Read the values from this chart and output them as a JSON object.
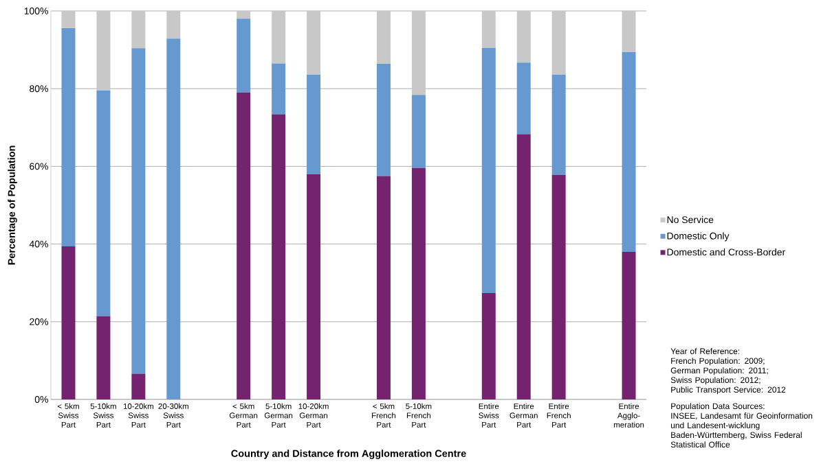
{
  "chart_data": {
    "type": "bar",
    "stacked": true,
    "xlabel": "Country and Distance from Agglomeration Centre",
    "ylabel": "Percentage of Population",
    "categories": [
      "< 5km Swiss Part",
      "5-10km Swiss Part",
      "10-20km Swiss Part",
      "20-30km Swiss Part",
      null,
      "< 5km German Part",
      "5-10km German Part",
      "10-20km German Part",
      null,
      "< 5km French Part",
      "5-10km French Part",
      null,
      "Entire Swiss Part",
      "Entire German Part",
      "Entire French Part",
      null,
      "Entire Agglo-meration"
    ],
    "series": [
      {
        "name": "Domestic and Cross-Border",
        "color": "#74236f",
        "values": [
          39.4,
          21.4,
          6.6,
          0,
          null,
          79.0,
          73.4,
          58.0,
          null,
          57.5,
          59.6,
          null,
          27.4,
          68.3,
          57.8,
          null,
          38.0
        ]
      },
      {
        "name": "Domestic Only",
        "color": "#6699d0",
        "values": [
          56.2,
          58.1,
          83.8,
          92.9,
          null,
          19.0,
          13.1,
          25.6,
          null,
          28.9,
          18.8,
          null,
          63.1,
          18.4,
          25.8,
          null,
          51.4
        ]
      },
      {
        "name": "No Service",
        "color": "#c8c8c8",
        "values": [
          4.4,
          20.5,
          9.6,
          7.1,
          null,
          2.0,
          13.5,
          16.4,
          null,
          13.6,
          21.6,
          null,
          9.5,
          13.3,
          16.4,
          null,
          10.6
        ]
      }
    ],
    "ylim": [
      0,
      100
    ],
    "yticks": [
      {
        "value": 0,
        "label": "0%"
      },
      {
        "value": 20,
        "label": "20%"
      },
      {
        "value": 40,
        "label": "40%"
      },
      {
        "value": 60,
        "label": "60%"
      },
      {
        "value": 80,
        "label": "80%"
      },
      {
        "value": 100,
        "label": "100%"
      }
    ],
    "grid": "y",
    "legend": "right",
    "annotations": [
      "Year of Reference:",
      "French Population: 2009;",
      "German Population: 2011;",
      "Swiss Population: 2012;",
      "Public Transport Service: 2012",
      "Population Data Sources:",
      "INSEE, Landesamt für Geoinformation und Landesent-wicklung Baden-Württemberg, Swiss Federal Statistical Office"
    ]
  }
}
